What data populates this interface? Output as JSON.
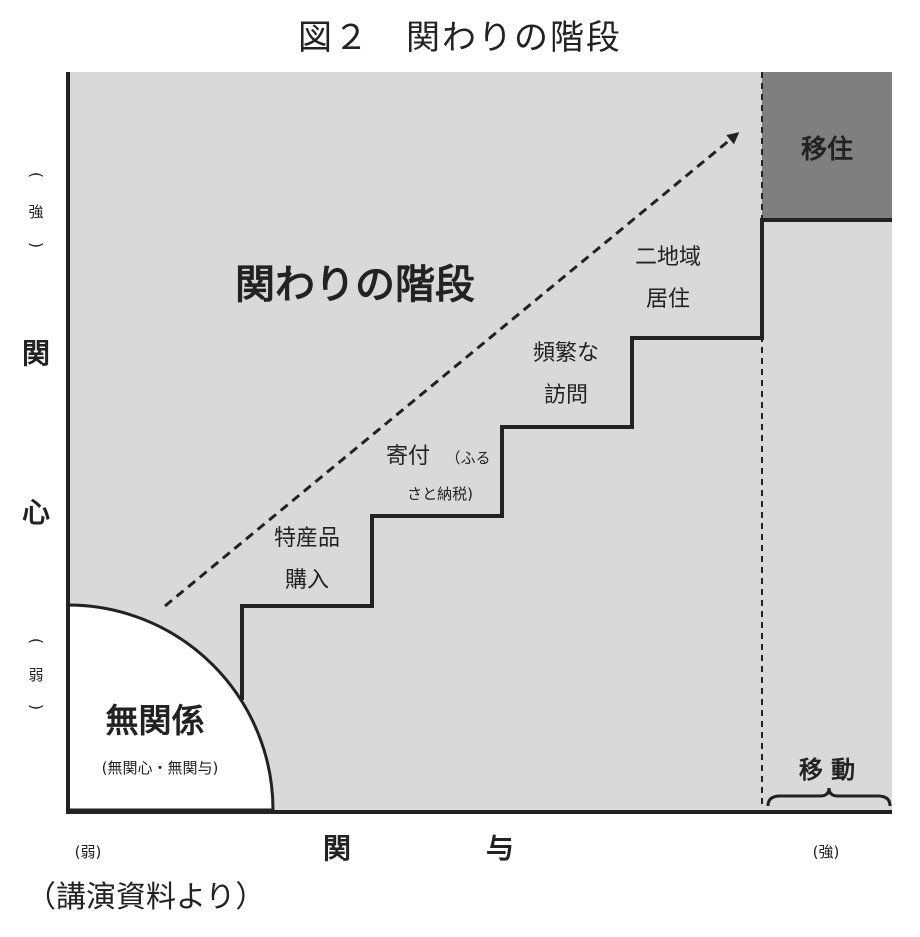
{
  "title": "図２　関わりの階段",
  "source": "（講演資料より）",
  "y_axis": {
    "label_char1": "関",
    "label_char2": "心",
    "high": "強",
    "low": "弱"
  },
  "x_axis": {
    "label_char1": "関",
    "label_char2": "与",
    "low": "(弱)",
    "high": "(強)"
  },
  "colors": {
    "background": "#d9d9d9",
    "relocation_box": "#7f7f7f",
    "line": "#222222",
    "page": "#ffffff"
  },
  "stair_title": "関わりの階段",
  "no_relation": {
    "main": "無関係",
    "sub": "(無関心・無関与)"
  },
  "steps": [
    {
      "line1": "特産品",
      "line2": "購入"
    },
    {
      "line1": "寄付",
      "line1_small": "（ふる",
      "line2": "さと納税)"
    },
    {
      "line1": "頻繁な",
      "line2": "訪問"
    },
    {
      "line1": "二地域",
      "line2": "居住"
    }
  ],
  "relocation": "移住",
  "movement": "移 動"
}
